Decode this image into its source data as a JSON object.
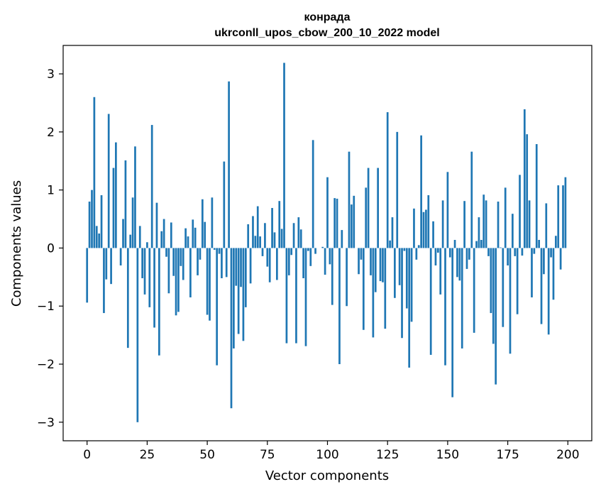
{
  "chart_data": {
    "type": "bar",
    "title": "конрада",
    "subtitle": "ukrconll_upos_cbow_200_10_2022 model",
    "xlabel": "Vector components",
    "ylabel": "Components values",
    "xlim": [
      -9.95,
      209.95
    ],
    "ylim": [
      -3.32,
      3.49
    ],
    "xticks": [
      0,
      25,
      50,
      75,
      100,
      125,
      150,
      175,
      200
    ],
    "yticks": [
      -3,
      -2,
      -1,
      0,
      1,
      2,
      3
    ],
    "xtick_labels": [
      "0",
      "25",
      "50",
      "75",
      "100",
      "125",
      "150",
      "175",
      "200"
    ],
    "ytick_labels": [
      "−3",
      "−2",
      "−1",
      "0",
      "1",
      "2",
      "3"
    ],
    "bar_color": "#1f77b4",
    "grid": false,
    "values": [
      -0.94,
      0.8,
      1.0,
      2.6,
      0.38,
      0.25,
      0.91,
      -1.12,
      -0.54,
      2.31,
      -0.62,
      1.38,
      1.82,
      0.0,
      -0.3,
      0.5,
      1.51,
      -1.72,
      0.23,
      0.87,
      1.75,
      -3.0,
      0.38,
      -0.52,
      -0.8,
      0.1,
      -1.02,
      2.12,
      -1.37,
      0.78,
      -1.85,
      0.29,
      0.5,
      -0.15,
      -0.78,
      0.44,
      -0.48,
      -1.16,
      -1.1,
      -0.31,
      -0.55,
      0.34,
      0.2,
      -0.85,
      0.49,
      0.35,
      -0.47,
      -0.2,
      0.84,
      0.45,
      -1.15,
      -1.25,
      0.87,
      -0.03,
      -2.02,
      -0.1,
      -0.52,
      1.49,
      -0.5,
      2.87,
      -2.76,
      -1.73,
      -0.65,
      -1.48,
      -0.67,
      -1.6,
      -1.02,
      0.41,
      -0.61,
      0.55,
      0.21,
      0.72,
      0.2,
      -0.14,
      0.43,
      -0.32,
      -0.59,
      0.69,
      0.27,
      -0.55,
      0.81,
      0.33,
      3.19,
      -1.64,
      -0.47,
      -0.12,
      0.43,
      -1.64,
      0.53,
      0.32,
      -0.52,
      -1.69,
      -0.05,
      -0.31,
      1.86,
      -0.1,
      0.0,
      0.0,
      0.02,
      -0.46,
      1.22,
      -0.28,
      -0.98,
      0.86,
      0.85,
      -2.0,
      0.31,
      0.0,
      -1.0,
      1.66,
      0.75,
      0.9,
      0.0,
      -0.45,
      -0.2,
      -1.41,
      1.04,
      1.38,
      -0.47,
      -1.54,
      -0.76,
      1.38,
      -0.57,
      -0.59,
      -1.39,
      2.34,
      0.13,
      0.53,
      -0.86,
      2.0,
      -0.64,
      -1.55,
      -0.05,
      -1.04,
      -2.06,
      -1.27,
      0.68,
      -0.2,
      0.05,
      1.94,
      0.62,
      0.66,
      0.91,
      -1.84,
      0.46,
      -0.3,
      -0.08,
      -0.8,
      0.82,
      -2.02,
      1.31,
      -0.16,
      -2.57,
      0.14,
      -0.5,
      -0.56,
      -1.73,
      0.81,
      -0.36,
      -0.2,
      1.66,
      -1.46,
      0.12,
      0.53,
      0.14,
      0.92,
      0.82,
      -0.14,
      -1.12,
      -1.65,
      -2.35,
      0.8,
      0.01,
      -1.36,
      1.04,
      -0.3,
      -1.82,
      0.59,
      -0.14,
      -1.14,
      1.26,
      -0.13,
      2.39,
      1.96,
      0.82,
      -0.85,
      -0.1,
      1.79,
      0.14,
      -1.31,
      -0.45,
      0.77,
      -1.49,
      -0.16,
      -0.89,
      0.21,
      1.08,
      -0.37,
      1.08,
      1.22
    ]
  }
}
